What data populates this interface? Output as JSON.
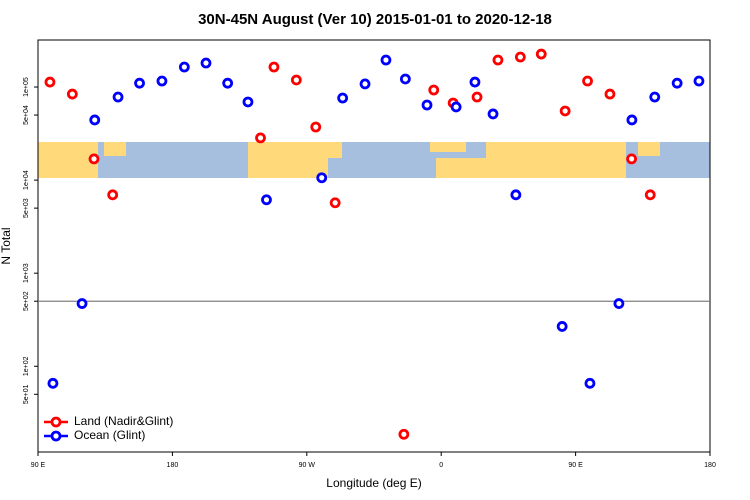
{
  "chart_data": {
    "type": "scatter",
    "title": "30N-45N August (Ver 10)   2015-01-01 to 2020-12-18",
    "x_label": "Longitude (deg E)",
    "y_label": "N Total",
    "xlim": [
      90,
      540
    ],
    "xticks": [
      {
        "value": 90,
        "label": "90 E"
      },
      180,
      {
        "value": 270,
        "label": "90 W"
      },
      {
        "value": 360,
        "label": "0"
      },
      {
        "value": 450,
        "label": "90 E"
      },
      {
        "value": 540,
        "label": "180"
      }
    ],
    "ylim": [
      12,
      320000
    ],
    "ylog": true,
    "yticks": [
      {
        "value": 50,
        "label": "5e+01"
      },
      {
        "value": 100,
        "label": "1e+02"
      },
      {
        "value": 500,
        "label": "5e+02"
      },
      {
        "value": 1000,
        "label": "1e+03"
      },
      {
        "value": 5000,
        "label": "5e+03"
      },
      {
        "value": 10000,
        "label": "1e+04"
      },
      {
        "value": 50000,
        "label": "5e+04"
      },
      {
        "value": 100000,
        "label": "1e+05"
      }
    ],
    "hline": 500,
    "hline_color": "#808080",
    "legend": "bottom-left",
    "series": [
      {
        "name": "Land (Nadir&Glint)",
        "color": "#ff0000",
        "x": [
          98,
          113,
          127.5,
          140,
          239,
          248,
          263,
          276,
          289,
          335,
          355,
          368,
          384,
          398,
          413,
          427,
          443,
          458,
          473,
          487.5,
          500
        ],
        "values": [
          113000,
          84000,
          16900,
          6950,
          28400,
          164000,
          119000,
          37200,
          5710,
          18.6,
          92900,
          67400,
          78100,
          195000,
          210000,
          226000,
          55300,
          116000,
          84000,
          16900,
          6950
        ]
      },
      {
        "name": "Ocean (Glint)",
        "color": "#0000ff",
        "x": [
          100,
          119.5,
          128,
          143.6,
          158,
          173,
          188,
          202.5,
          217,
          230.6,
          243,
          280,
          294,
          309,
          323,
          336,
          350.5,
          370,
          382.6,
          394.7,
          410,
          441,
          459.6,
          479,
          487.7,
          503,
          518,
          532.6
        ],
        "values": [
          65.6,
          472,
          44300,
          78100,
          110000,
          116000,
          164000,
          181000,
          110000,
          69100,
          6150,
          10600,
          76200,
          108000,
          195000,
          122000,
          64100,
          61100,
          113000,
          51400,
          6950,
          268,
          65.6,
          472,
          44300,
          78100,
          110000,
          116000
        ]
      }
    ]
  }
}
